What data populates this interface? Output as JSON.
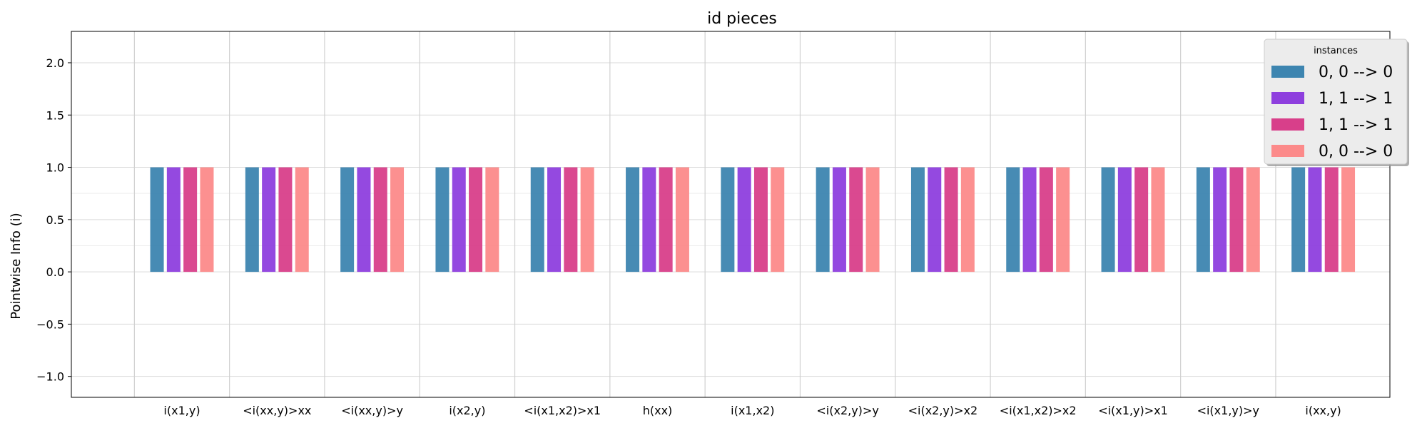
{
  "chart_data": {
    "type": "bar",
    "title": "id pieces",
    "xlabel": "",
    "ylabel": "Pointwise Info (i)",
    "ylim": [
      -1.2,
      2.3
    ],
    "yticks": [
      -1.0,
      -0.5,
      0.0,
      0.5,
      1.0,
      1.5,
      2.0
    ],
    "ytick_labels": [
      "−1.0",
      "−0.5",
      "0.0",
      "0.5",
      "1.0",
      "1.5",
      "2.0"
    ],
    "grid": true,
    "categories": [
      "i(x1,y)",
      "<i(xx,y)>xx",
      "<i(xx,y)>y",
      "i(x2,y)",
      "<i(x1,x2)>x1",
      "h(xx)",
      "i(x1,x2)",
      "<i(x2,y)>y",
      "<i(x2,y)>x2",
      "<i(x1,x2)>x2",
      "<i(x1,y)>x1",
      "<i(x1,y)>y",
      "i(xx,y)"
    ],
    "legend": {
      "title": "instances",
      "placement": "top-right"
    },
    "series": [
      {
        "name": "0, 0 --> 0",
        "color": "#3d85b0",
        "values": [
          1,
          1,
          1,
          1,
          1,
          1,
          1,
          1,
          1,
          1,
          1,
          1,
          1
        ]
      },
      {
        "name": "1, 1 --> 1",
        "color": "#8e3fde",
        "values": [
          1,
          1,
          1,
          1,
          1,
          1,
          1,
          1,
          1,
          1,
          1,
          1,
          1
        ]
      },
      {
        "name": "1, 1 --> 1",
        "color": "#d83f8a",
        "values": [
          1,
          1,
          1,
          1,
          1,
          1,
          1,
          1,
          1,
          1,
          1,
          1,
          1
        ]
      },
      {
        "name": "0, 0 --> 0",
        "color": "#fc8a8a",
        "values": [
          1,
          1,
          1,
          1,
          1,
          1,
          1,
          1,
          1,
          1,
          1,
          1,
          1
        ]
      }
    ]
  }
}
